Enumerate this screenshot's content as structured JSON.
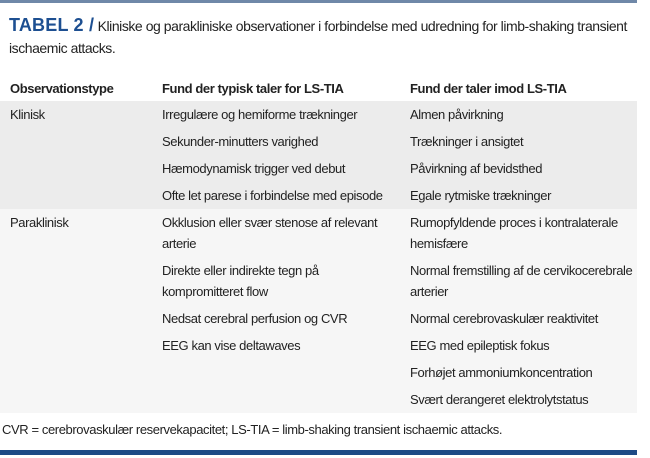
{
  "title": {
    "label": "TABEL 2 /",
    "text": "Kliniske og parakliniske observationer i forbindelse med udredning for limb-shaking transient ischaemic attacks."
  },
  "table": {
    "headers": [
      "Observationstype",
      "Fund der typisk taler for LS-TIA",
      "Fund der taler imod LS-TIA"
    ],
    "rows": [
      {
        "type": "Klinisk",
        "for": "Irregulære og hemiforme trækninger",
        "against": "Almen påvirkning"
      },
      {
        "type": "",
        "for": "Sekunder-minutters varighed",
        "against": "Trækninger i ansigtet"
      },
      {
        "type": "",
        "for": "Hæmodynamisk trigger ved debut",
        "against": "Påvirkning af bevidsthed"
      },
      {
        "type": "",
        "for": "Ofte let parese i forbindelse med episode",
        "against": "Egale rytmiske trækninger"
      },
      {
        "type": "Paraklinisk",
        "for": "Okklusion eller svær stenose af relevant arterie",
        "against": "Rumopfyldende proces i kontralaterale hemisfære"
      },
      {
        "type": "",
        "for": "Direkte eller indirekte tegn på kompromitteret flow",
        "against": "Normal fremstilling af de cervikocerebrale arterier"
      },
      {
        "type": "",
        "for": "Nedsat cerebral perfusion og CVR",
        "against": "Normal cerebrovaskulær reaktivitet"
      },
      {
        "type": "",
        "for": "EEG kan vise deltawaves",
        "against": "EEG med epileptisk fokus"
      },
      {
        "type": "",
        "for": "",
        "against": "Forhøjet ammoniumkoncentration"
      },
      {
        "type": "",
        "for": "",
        "against": "Svært derangeret elektrolytstatus"
      }
    ]
  },
  "footnote": "CVR = cerebrovaskulær reservekapacitet; LS-TIA = limb-shaking transient ischaemic attacks.",
  "colors": {
    "accent": "#1d4f91",
    "rule_top": "#6f88a8",
    "rule_bottom": "#1d4a85",
    "band_clinical": "#ececec",
    "band_paraclinical": "#f6f6f6"
  }
}
